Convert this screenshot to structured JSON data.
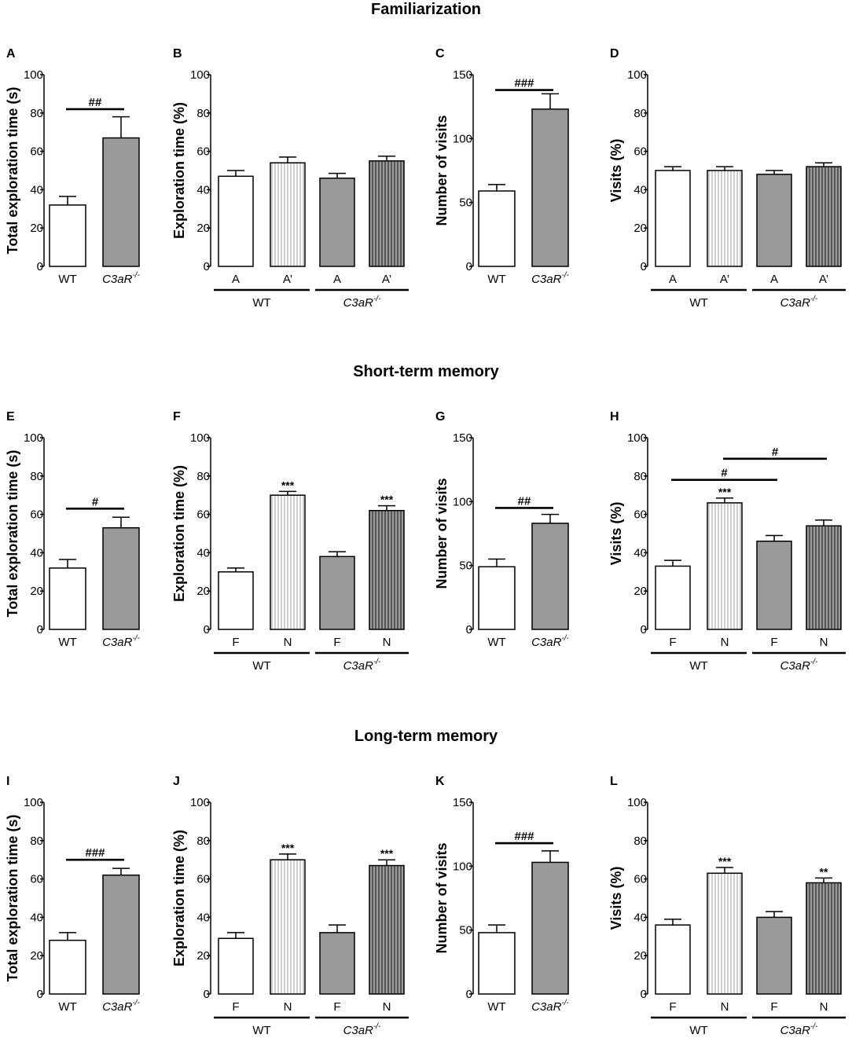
{
  "sections": [
    {
      "title": "Familiarization"
    },
    {
      "title": "Short-term memory"
    },
    {
      "title": "Long-term memory"
    }
  ],
  "colors": {
    "bar_fill_ko": "#9a9a9a",
    "bar_fill_wt": "#ffffff",
    "stripe_light": "#b8b8b8",
    "stripe_dark": "#3a3a3a",
    "axis": "#000000"
  },
  "chart_data": [
    {
      "id": "A",
      "type": "bar",
      "ylabel": "Total exploration time (s)",
      "ylim": [
        0,
        100
      ],
      "yticks": [
        "0",
        "20",
        "40",
        "60",
        "80",
        "100"
      ],
      "categories": [
        "WT",
        "C3aR"
      ],
      "superscript": "-/-",
      "values": [
        32,
        67
      ],
      "errors": [
        4.5,
        11
      ],
      "styles": [
        "white",
        "gray"
      ],
      "stars": [
        "",
        ""
      ],
      "brackets": [
        {
          "from": 0,
          "to": 1,
          "y": 82,
          "label": "##"
        }
      ],
      "groups": []
    },
    {
      "id": "B",
      "type": "bar",
      "ylabel": "Exploration time (%)",
      "ylim": [
        0,
        100
      ],
      "yticks": [
        "0",
        "20",
        "40",
        "60",
        "80",
        "100"
      ],
      "categories": [
        "A",
        "A’",
        "A",
        "A’"
      ],
      "values": [
        47,
        54,
        46,
        55
      ],
      "errors": [
        3,
        3,
        2.5,
        2.5
      ],
      "styles": [
        "white",
        "striped-light",
        "gray",
        "striped-dark"
      ],
      "stars": [
        "",
        "",
        "",
        ""
      ],
      "brackets": [],
      "groups": [
        {
          "label": "WT",
          "from": 0,
          "to": 1,
          "sup": ""
        },
        {
          "label": "C3aR",
          "from": 2,
          "to": 3,
          "sup": "-/-"
        }
      ]
    },
    {
      "id": "C",
      "type": "bar",
      "ylabel": "Number of visits",
      "ylim": [
        0,
        150
      ],
      "yticks": [
        "0",
        "50",
        "100",
        "150"
      ],
      "categories": [
        "WT",
        "C3aR"
      ],
      "superscript": "-/-",
      "values": [
        59,
        123
      ],
      "errors": [
        5,
        12
      ],
      "styles": [
        "white",
        "gray"
      ],
      "stars": [
        "",
        ""
      ],
      "brackets": [
        {
          "from": 0,
          "to": 1,
          "y": 138,
          "label": "###"
        }
      ],
      "groups": []
    },
    {
      "id": "D",
      "type": "bar",
      "ylabel": "Visits (%)",
      "ylim": [
        0,
        100
      ],
      "yticks": [
        "0",
        "20",
        "40",
        "60",
        "80",
        "100"
      ],
      "categories": [
        "A",
        "A’",
        "A",
        "A’"
      ],
      "values": [
        50,
        50,
        48,
        52
      ],
      "errors": [
        2,
        2,
        2,
        2
      ],
      "styles": [
        "white",
        "striped-light",
        "gray",
        "striped-dark"
      ],
      "stars": [
        "",
        "",
        "",
        ""
      ],
      "brackets": [],
      "groups": [
        {
          "label": "WT",
          "from": 0,
          "to": 1,
          "sup": ""
        },
        {
          "label": "C3aR",
          "from": 2,
          "to": 3,
          "sup": "-/-"
        }
      ]
    },
    {
      "id": "E",
      "type": "bar",
      "ylabel": "Total exploration time (s)",
      "ylim": [
        0,
        100
      ],
      "yticks": [
        "0",
        "20",
        "40",
        "60",
        "80",
        "100"
      ],
      "categories": [
        "WT",
        "C3aR"
      ],
      "superscript": "-/-",
      "values": [
        32,
        53
      ],
      "errors": [
        4.5,
        5.5
      ],
      "styles": [
        "white",
        "gray"
      ],
      "stars": [
        "",
        ""
      ],
      "brackets": [
        {
          "from": 0,
          "to": 1,
          "y": 63,
          "label": "#"
        }
      ],
      "groups": []
    },
    {
      "id": "F",
      "type": "bar",
      "ylabel": "Exploration time (%)",
      "ylim": [
        0,
        100
      ],
      "yticks": [
        "0",
        "20",
        "40",
        "60",
        "80",
        "100"
      ],
      "categories": [
        "F",
        "N",
        "F",
        "N"
      ],
      "values": [
        30,
        70,
        38,
        62
      ],
      "errors": [
        2,
        2,
        2.5,
        2.5
      ],
      "styles": [
        "white",
        "striped-light",
        "gray",
        "striped-dark"
      ],
      "stars": [
        "",
        "***",
        "",
        "***"
      ],
      "brackets": [],
      "groups": [
        {
          "label": "WT",
          "from": 0,
          "to": 1,
          "sup": ""
        },
        {
          "label": "C3aR",
          "from": 2,
          "to": 3,
          "sup": "-/-"
        }
      ]
    },
    {
      "id": "G",
      "type": "bar",
      "ylabel": "Number of visits",
      "ylim": [
        0,
        150
      ],
      "yticks": [
        "0",
        "50",
        "100",
        "150"
      ],
      "categories": [
        "WT",
        "C3aR"
      ],
      "superscript": "-/-",
      "values": [
        49,
        83
      ],
      "errors": [
        6,
        7
      ],
      "styles": [
        "white",
        "gray"
      ],
      "stars": [
        "",
        ""
      ],
      "brackets": [
        {
          "from": 0,
          "to": 1,
          "y": 95,
          "label": "##"
        }
      ],
      "groups": []
    },
    {
      "id": "H",
      "type": "bar",
      "ylabel": "Visits (%)",
      "ylim": [
        0,
        100
      ],
      "yticks": [
        "0",
        "20",
        "40",
        "60",
        "80",
        "100"
      ],
      "categories": [
        "F",
        "N",
        "F",
        "N"
      ],
      "values": [
        33,
        66,
        46,
        54
      ],
      "errors": [
        3,
        2.5,
        3,
        3
      ],
      "styles": [
        "white",
        "striped-light",
        "gray",
        "striped-dark"
      ],
      "stars": [
        "",
        "***",
        "",
        ""
      ],
      "brackets": [
        {
          "from": 0,
          "to": 2,
          "y": 78,
          "label": "#"
        },
        {
          "from": 1,
          "to": 3,
          "y": 89,
          "label": "#"
        }
      ],
      "groups": [
        {
          "label": "WT",
          "from": 0,
          "to": 1,
          "sup": ""
        },
        {
          "label": "C3aR",
          "from": 2,
          "to": 3,
          "sup": "-/-"
        }
      ]
    },
    {
      "id": "I",
      "type": "bar",
      "ylabel": "Total exploration time (s)",
      "ylim": [
        0,
        100
      ],
      "yticks": [
        "0",
        "20",
        "40",
        "60",
        "80",
        "100"
      ],
      "categories": [
        "WT",
        "C3aR"
      ],
      "superscript": "-/-",
      "values": [
        28,
        62
      ],
      "errors": [
        4,
        3.5
      ],
      "styles": [
        "white",
        "gray"
      ],
      "stars": [
        "",
        ""
      ],
      "brackets": [
        {
          "from": 0,
          "to": 1,
          "y": 70,
          "label": "###"
        }
      ],
      "groups": []
    },
    {
      "id": "J",
      "type": "bar",
      "ylabel": "Exploration time (%)",
      "ylim": [
        0,
        100
      ],
      "yticks": [
        "0",
        "20",
        "40",
        "60",
        "80",
        "100"
      ],
      "categories": [
        "F",
        "N",
        "F",
        "N"
      ],
      "values": [
        29,
        70,
        32,
        67
      ],
      "errors": [
        3,
        3,
        4,
        3
      ],
      "styles": [
        "white",
        "striped-light",
        "gray",
        "striped-dark"
      ],
      "stars": [
        "",
        "***",
        "",
        "***"
      ],
      "brackets": [],
      "groups": [
        {
          "label": "WT",
          "from": 0,
          "to": 1,
          "sup": ""
        },
        {
          "label": "C3aR",
          "from": 2,
          "to": 3,
          "sup": "-/-"
        }
      ]
    },
    {
      "id": "K",
      "type": "bar",
      "ylabel": "Number of visits",
      "ylim": [
        0,
        150
      ],
      "yticks": [
        "0",
        "50",
        "100",
        "150"
      ],
      "categories": [
        "WT",
        "C3aR"
      ],
      "superscript": "-/-",
      "values": [
        48,
        103
      ],
      "errors": [
        6,
        9
      ],
      "styles": [
        "white",
        "gray"
      ],
      "stars": [
        "",
        ""
      ],
      "brackets": [
        {
          "from": 0,
          "to": 1,
          "y": 118,
          "label": "###"
        }
      ],
      "groups": []
    },
    {
      "id": "L",
      "type": "bar",
      "ylabel": "Visits (%)",
      "ylim": [
        0,
        100
      ],
      "yticks": [
        "0",
        "20",
        "40",
        "60",
        "80",
        "100"
      ],
      "categories": [
        "F",
        "N",
        "F",
        "N"
      ],
      "values": [
        36,
        63,
        40,
        58
      ],
      "errors": [
        3,
        3,
        3,
        2.5
      ],
      "styles": [
        "white",
        "striped-light",
        "gray",
        "striped-dark"
      ],
      "stars": [
        "",
        "***",
        "",
        "**"
      ],
      "brackets": [],
      "groups": [
        {
          "label": "WT",
          "from": 0,
          "to": 1,
          "sup": ""
        },
        {
          "label": "C3aR",
          "from": 2,
          "to": 3,
          "sup": "-/-"
        }
      ]
    }
  ]
}
